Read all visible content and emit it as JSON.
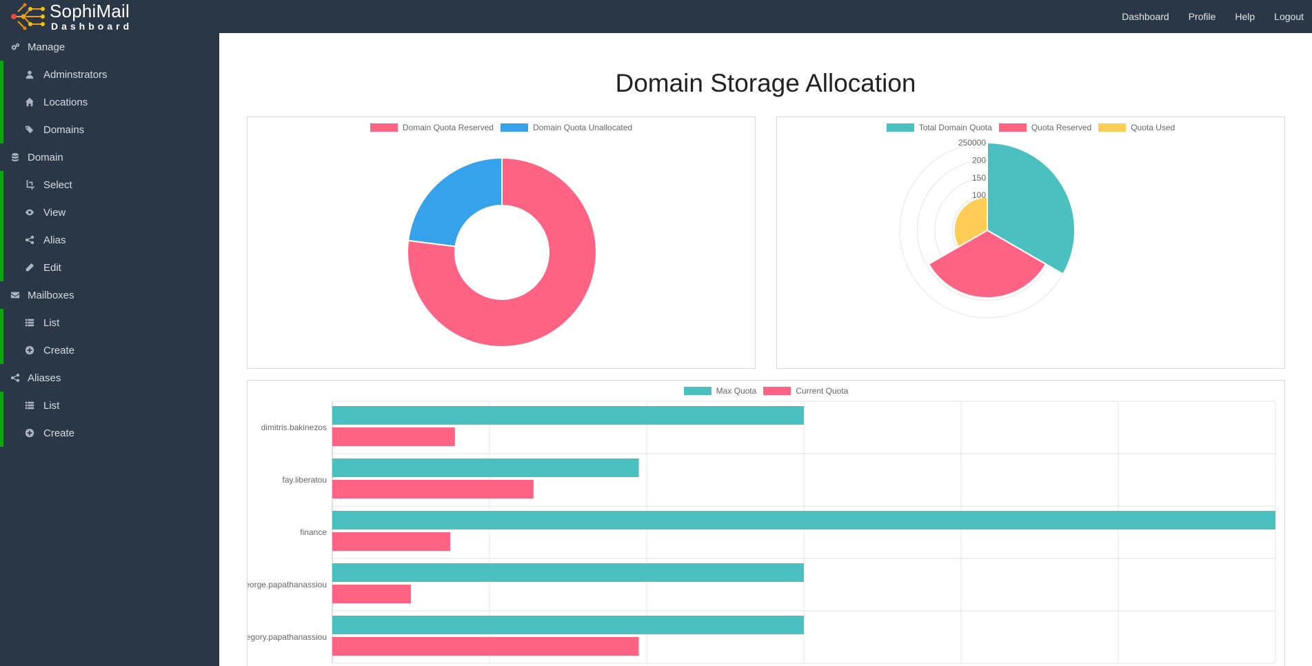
{
  "navbar": {
    "brand_title": "SophiMail",
    "brand_subtitle": "Dashboard",
    "links": [
      "Dashboard",
      "Profile",
      "Help",
      "Logout"
    ]
  },
  "sidebar": {
    "accent_color": "#11a311",
    "sections": [
      {
        "label": "Manage",
        "icon": "gears-icon",
        "items": [
          {
            "label": "Adminstrators",
            "icon": "user-icon"
          },
          {
            "label": "Locations",
            "icon": "home-icon"
          },
          {
            "label": "Domains",
            "icon": "tags-icon"
          }
        ]
      },
      {
        "label": "Domain",
        "icon": "database-icon",
        "items": [
          {
            "label": "Select",
            "icon": "crop-icon"
          },
          {
            "label": "View",
            "icon": "eye-icon"
          },
          {
            "label": "Alias",
            "icon": "share-icon"
          },
          {
            "label": "Edit",
            "icon": "pencil-icon"
          }
        ]
      },
      {
        "label": "Mailboxes",
        "icon": "envelope-icon",
        "items": [
          {
            "label": "List",
            "icon": "list-icon"
          },
          {
            "label": "Create",
            "icon": "plus-circle-icon"
          }
        ]
      },
      {
        "label": "Aliases",
        "icon": "share-icon",
        "items": [
          {
            "label": "List",
            "icon": "list-icon"
          },
          {
            "label": "Create",
            "icon": "plus-circle-icon"
          }
        ]
      }
    ]
  },
  "main": {
    "title": "Domain Storage Allocation"
  },
  "chart_data": [
    {
      "type": "doughnut",
      "series": [
        {
          "name": "Domain Quota Reserved",
          "value": 77,
          "color": "#ff6384"
        },
        {
          "name": "Domain Quota Unallocated",
          "value": 23,
          "color": "#36a2eb"
        }
      ],
      "legend": "top"
    },
    {
      "type": "polarArea",
      "series": [
        {
          "name": "Total Domain Quota",
          "value": 250000,
          "color": "#4bc0c0"
        },
        {
          "name": "Quota Reserved",
          "value": 193000,
          "color": "#ff6384"
        },
        {
          "name": "Quota Used",
          "value": 95000,
          "color": "#ffcd56"
        }
      ],
      "r_ticks": [
        "250000",
        "200",
        "150",
        "100"
      ],
      "r_tick_values": [
        250000,
        200000,
        150000,
        100000
      ],
      "rmax": 250000,
      "legend": "top"
    },
    {
      "type": "bar",
      "orientation": "horizontal",
      "categories": [
        "dimitris.bakinezos",
        "fay.liberatou",
        "finance",
        "george.papathanassiou",
        "gregory.papathanassiou"
      ],
      "series": [
        {
          "name": "Max Quota",
          "color": "#4bc0c0",
          "values": [
            3,
            1.95,
            6,
            3,
            3
          ]
        },
        {
          "name": "Current Quota",
          "color": "#ff6384",
          "values": [
            0.78,
            1.28,
            0.75,
            0.5,
            1.95
          ]
        }
      ],
      "xlim": [
        0,
        6
      ],
      "grid": true,
      "legend": "top"
    }
  ]
}
